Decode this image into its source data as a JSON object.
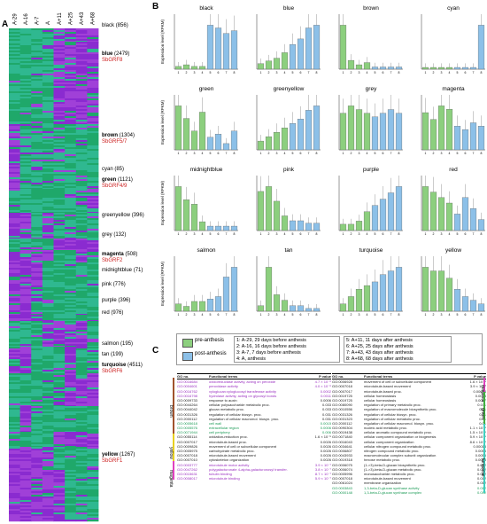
{
  "panels": {
    "a": "A",
    "b": "B",
    "c": "C"
  },
  "heatmap": {
    "columns": [
      "A-29",
      "A-16",
      "A-7",
      "A",
      "A+11",
      "A+25",
      "A+43",
      "A+68"
    ],
    "modules": [
      {
        "name": "black",
        "count": "(856)",
        "gene": ""
      },
      {
        "name": "blue",
        "count": "(2479)",
        "gene": "SbGRF8",
        "bold": true
      },
      {
        "name": "brown",
        "count": "(1304)",
        "gene": "SbGRF5/7",
        "bold": true
      },
      {
        "name": "cyan",
        "count": "(85)",
        "gene": ""
      },
      {
        "name": "green",
        "count": "(1121)",
        "gene": "SbGRF4/9",
        "bold": true
      },
      {
        "name": "greenyellow",
        "count": "(396)",
        "gene": ""
      },
      {
        "name": "grey",
        "count": "(132)",
        "gene": ""
      },
      {
        "name": "magenta",
        "count": "(508)",
        "gene": "SbGRF2",
        "bold": true
      },
      {
        "name": "midnightblue",
        "count": "(71)",
        "gene": ""
      },
      {
        "name": "pink",
        "count": "(776)",
        "gene": ""
      },
      {
        "name": "purple",
        "count": "(396)",
        "gene": ""
      },
      {
        "name": "red",
        "count": "(976)",
        "gene": ""
      },
      {
        "name": "salmon",
        "count": "(195)",
        "gene": ""
      },
      {
        "name": "tan",
        "count": "(199)",
        "gene": ""
      },
      {
        "name": "turquoise",
        "count": "(4511)",
        "gene": "SbGRF6",
        "bold": true
      },
      {
        "name": "yellow",
        "count": "(1267)",
        "gene": "SbGRF1",
        "bold": true
      }
    ],
    "colors": {
      "high": "#8a2bd0",
      "low": "#1fa86a",
      "mid": "#3cc3a0"
    }
  },
  "chart_data": [
    {
      "type": "bar",
      "title": "black",
      "ylabel": "Expression level (RPKM)",
      "x": [
        "1",
        "2",
        "3",
        "4",
        "5",
        "6",
        "7",
        "8"
      ],
      "values": [
        0.05,
        0.08,
        0.05,
        0.05,
        0.8,
        0.75,
        0.65,
        0.7
      ]
    },
    {
      "type": "bar",
      "title": "blue",
      "ylabel": "",
      "x": [
        "1",
        "2",
        "3",
        "4",
        "5",
        "6",
        "7",
        "8"
      ],
      "values": [
        0.1,
        0.15,
        0.2,
        0.3,
        0.45,
        0.55,
        0.75,
        0.8
      ]
    },
    {
      "type": "bar",
      "title": "brown",
      "ylabel": "",
      "x": [
        "1",
        "2",
        "3",
        "4",
        "5",
        "6",
        "7",
        "8"
      ],
      "values": [
        1.0,
        0.2,
        0.1,
        0.15,
        0.05,
        0.05,
        0.05,
        0.05
      ]
    },
    {
      "type": "bar",
      "title": "cyan",
      "ylabel": "",
      "x": [
        "1",
        "2",
        "3",
        "4",
        "5",
        "6",
        "7",
        "8"
      ],
      "values": [
        0.05,
        0.05,
        0.05,
        0.05,
        0.05,
        0.05,
        0.05,
        1.25
      ]
    },
    {
      "type": "bar",
      "title": "green",
      "ylabel": "Expression level (RPKM)",
      "x": [
        "1",
        "2",
        "3",
        "4",
        "5",
        "6",
        "7",
        "8"
      ],
      "values": [
        0.7,
        0.5,
        0.3,
        0.6,
        0.2,
        0.25,
        0.1,
        0.3
      ]
    },
    {
      "type": "bar",
      "title": "greenyellow",
      "ylabel": "",
      "x": [
        "1",
        "2",
        "3",
        "4",
        "5",
        "6",
        "7",
        "8"
      ],
      "values": [
        0.1,
        0.15,
        0.2,
        0.25,
        0.3,
        0.35,
        0.45,
        0.5
      ]
    },
    {
      "type": "bar",
      "title": "grey",
      "ylabel": "",
      "x": [
        "1",
        "2",
        "3",
        "4",
        "5",
        "6",
        "7",
        "8"
      ],
      "values": [
        0.5,
        0.6,
        0.55,
        0.5,
        0.45,
        0.5,
        0.55,
        0.5
      ]
    },
    {
      "type": "bar",
      "title": "magenta",
      "ylabel": "",
      "x": [
        "1",
        "2",
        "3",
        "4",
        "5",
        "6",
        "7",
        "8"
      ],
      "values": [
        0.55,
        0.45,
        0.65,
        0.6,
        0.35,
        0.3,
        0.4,
        0.35
      ]
    },
    {
      "type": "bar",
      "title": "midnightblue",
      "ylabel": "Expression level (RPKM)",
      "x": [
        "1",
        "2",
        "3",
        "4",
        "5",
        "6",
        "7",
        "8"
      ],
      "values": [
        1.0,
        0.7,
        0.6,
        0.2,
        0.1,
        0.1,
        0.1,
        0.1
      ]
    },
    {
      "type": "bar",
      "title": "pink",
      "ylabel": "",
      "x": [
        "1",
        "2",
        "3",
        "4",
        "5",
        "6",
        "7",
        "8"
      ],
      "values": [
        0.8,
        0.9,
        0.6,
        0.3,
        0.2,
        0.2,
        0.15,
        0.15
      ]
    },
    {
      "type": "bar",
      "title": "purple",
      "ylabel": "",
      "x": [
        "1",
        "2",
        "3",
        "4",
        "5",
        "6",
        "7",
        "8"
      ],
      "values": [
        0.1,
        0.1,
        0.15,
        0.3,
        0.4,
        0.5,
        0.6,
        0.7
      ]
    },
    {
      "type": "bar",
      "title": "red",
      "ylabel": "",
      "x": [
        "1",
        "2",
        "3",
        "4",
        "5",
        "6",
        "7",
        "8"
      ],
      "values": [
        0.4,
        0.35,
        0.3,
        0.25,
        0.15,
        0.3,
        0.2,
        0.1
      ]
    },
    {
      "type": "bar",
      "title": "salmon",
      "ylabel": "Expression level (RPKM)",
      "x": [
        "1",
        "2",
        "3",
        "4",
        "5",
        "6",
        "7",
        "8"
      ],
      "values": [
        0.15,
        0.1,
        0.2,
        0.2,
        0.25,
        0.3,
        0.7,
        0.9
      ]
    },
    {
      "type": "bar",
      "title": "tan",
      "ylabel": "",
      "x": [
        "1",
        "2",
        "3",
        "4",
        "5",
        "6",
        "7",
        "8"
      ],
      "values": [
        0.1,
        0.8,
        0.3,
        0.2,
        0.1,
        0.1,
        0.05,
        0.05
      ]
    },
    {
      "type": "bar",
      "title": "turquoise",
      "ylabel": "",
      "x": [
        "1",
        "2",
        "3",
        "4",
        "5",
        "6",
        "7",
        "8"
      ],
      "values": [
        0.1,
        0.2,
        0.3,
        0.35,
        0.4,
        0.5,
        0.55,
        0.6
      ]
    },
    {
      "type": "bar",
      "title": "yellow",
      "ylabel": "",
      "x": [
        "1",
        "2",
        "3",
        "4",
        "5",
        "6",
        "7",
        "8"
      ],
      "values": [
        0.6,
        0.55,
        0.55,
        0.45,
        0.3,
        0.2,
        0.15,
        0.1
      ]
    }
  ],
  "bar_colors": {
    "pre": "#8ccf7e",
    "post": "#8cc0e8",
    "edge": "#555555"
  },
  "legend": {
    "pre_label": "pre-anthesis",
    "post_label": "post-anthesis",
    "items": [
      "1: A-29, 29 days before anthesis",
      "2: A-16, 16 days before anthesis",
      "3: A-7, 7 days before anthesis",
      "4: A, anthesis",
      "5: A+11, 11 days after anthesis",
      "6: A+25, 25 days after anthesis",
      "7: A+43, 43 days after anthesis",
      "8: A+68, 68 days after anthesis"
    ]
  },
  "tables": {
    "head": {
      "go": "GO no.",
      "term": "Functional terms",
      "p": "P value"
    },
    "left": [
      {
        "go": "GO:0016684",
        "term": "oxidoreductase activity, acting on peroxide",
        "p": "4.7 × 10⁻⁸",
        "c": "#9b30c0"
      },
      {
        "go": "GO:0004601",
        "term": "peroxidase activity",
        "p": "4.0 × 10⁻⁸",
        "c": "#9b30c0"
      },
      {
        "go": "GO:0016762",
        "term": "xyloglucan:xyloglucosyl transferase activity",
        "p": "0.0002",
        "c": "#9b30c0"
      },
      {
        "go": "GO:0016798",
        "term": "hydrolase activity, acting on glycosyl bonds",
        "p": "0.0011",
        "c": "#9b30c0"
      },
      {
        "go": "GO:0009733",
        "term": "response to auxin",
        "p": "0.0006",
        "c": "#222"
      },
      {
        "go": "GO:0044264",
        "term": "cellular polysaccharide metabolic proc.",
        "p": "0.033",
        "c": "#222"
      },
      {
        "go": "GO:0044042",
        "term": "glucan metabolic proc.",
        "p": "0.033",
        "c": "#222"
      },
      {
        "go": "GO:0031326",
        "term": "regulation of cellular biosyn. proc.",
        "p": "0.031",
        "c": "#222"
      },
      {
        "go": "GO:2000112",
        "term": "regulation of cellular macromol. biosyn. proc.",
        "p": "0.031",
        "c": "#222"
      },
      {
        "go": "GO:0005618",
        "term": "cell wall",
        "p": "0.0015",
        "c": "#1a9a55"
      },
      {
        "go": "GO:0005576",
        "term": "extracellular region",
        "p": "0.0006",
        "c": "#1a9a55"
      },
      {
        "go": "GO:0071944",
        "term": "cell periphery",
        "p": "0.006",
        "c": "#1a9a55"
      },
      {
        "go": "GO:0055114",
        "term": "oxidation-reduction proc.",
        "p": "1.6 × 10⁻⁵",
        "c": "#222"
      },
      {
        "go": "GO:0007017",
        "term": "microtubule-based proc.",
        "p": "0.0026",
        "c": "#222"
      },
      {
        "go": "GO:0009826",
        "term": "movement of cell or subcellular component",
        "p": "0.0026",
        "c": "#222"
      },
      {
        "go": "GO:0005975",
        "term": "carbohydrate metabolic proc.",
        "p": "0.0026",
        "c": "#222"
      },
      {
        "go": "GO:0007018",
        "term": "microtubule-based movement",
        "p": "0.0026",
        "c": "#222"
      },
      {
        "go": "GO:0007010",
        "term": "cytoskeleton organization",
        "p": "0.0026",
        "c": "#222"
      },
      {
        "go": "GO:0003777",
        "term": "microtubule motor activity",
        "p": "3.9 × 10⁻⁷",
        "c": "#9b30c0"
      },
      {
        "go": "GO:0047262",
        "term": "polygalacturonate 4-alpha-galacturonosyl transfer.",
        "p": "3.8 × 10⁻⁷",
        "c": "#9b30c0"
      },
      {
        "go": "GO:0015631",
        "term": "tubulin binding",
        "p": "8.7 × 10⁻⁷",
        "c": "#9b30c0"
      },
      {
        "go": "GO:0008017",
        "term": "microtubule binding",
        "p": "5.9 × 10⁻⁷",
        "c": "#9b30c0"
      }
    ],
    "right": [
      {
        "go": "GO:0006928",
        "term": "movement of cell or subcellular component",
        "p": "1.6 × 10⁻⁸",
        "c": "#222"
      },
      {
        "go": "GO:0007018",
        "term": "microtubule-based movement",
        "p": "3.9 × 10⁻⁷",
        "c": "#222"
      },
      {
        "go": "GO:0007017",
        "term": "microtubule-based proc.",
        "p": "0.00014",
        "c": "#222"
      },
      {
        "go": "GO:0019725",
        "term": "cellular homeostasis",
        "p": "0.0015",
        "c": "#222"
      },
      {
        "go": "GO:0019725",
        "term": "cellular homeostasis",
        "p": "0.0017",
        "c": "#222"
      },
      {
        "go": "GO:0080090",
        "term": "regulation of primary metabolic proc.",
        "p": "0.011",
        "c": "#222"
      },
      {
        "go": "GO:0010556",
        "term": "regulation of macromolecule biosynthetic proc.",
        "p": "0.01",
        "c": "#222"
      },
      {
        "go": "GO:0031326",
        "term": "regulation of cellular biosyn. proc.",
        "p": "0.01",
        "c": "#222"
      },
      {
        "go": "GO:0031323",
        "term": "regulation of cellular metabolic proc.",
        "p": "0.01",
        "c": "#222"
      },
      {
        "go": "GO:2000112",
        "term": "regulation of cellular macromol. biosyn. proc.",
        "p": "0.01",
        "c": "#222"
      },
      {
        "go": "GO:0090304",
        "term": "nucleic acid metabolic proc.",
        "p": "1.1 × 10⁻⁵",
        "c": "#222"
      },
      {
        "go": "GO:0019438",
        "term": "cellular aromatic compound metabolic proc.",
        "p": "1.5 × 10⁻⁵",
        "c": "#222"
      },
      {
        "go": "GO:0071840",
        "term": "cellular component organization or biogenesis",
        "p": "5.9 × 10⁻⁵",
        "c": "#222"
      },
      {
        "go": "GO:0016043",
        "term": "cellular component organization",
        "p": "8.6 × 10⁻⁵",
        "c": "#222"
      },
      {
        "go": "GO:0034641",
        "term": "cellular nitrogen compound metabolic proc.",
        "p": "0.00018",
        "c": "#222"
      },
      {
        "go": "GO:0006807",
        "term": "nitrogen compound metabolic proc.",
        "p": "0.0055",
        "c": "#222"
      },
      {
        "go": "GO:0043933",
        "term": "macromolecular complex subunit organization",
        "p": "0.0055",
        "c": "#222"
      },
      {
        "go": "GO:0019318",
        "term": "hexose metabolic proc.",
        "p": "0.0068",
        "c": "#222"
      },
      {
        "go": "GO:0006075",
        "term": "(1->3)-beta-D-glucan biosynthetic proc.",
        "p": "0.012",
        "c": "#222"
      },
      {
        "go": "GO:0006074",
        "term": "(1->3)-beta-D-glucan metabolic proc.",
        "p": "0.012",
        "c": "#222"
      },
      {
        "go": "GO:0005996",
        "term": "monosaccharide metabolic proc.",
        "p": "0.012",
        "c": "#222"
      },
      {
        "go": "GO:0007018",
        "term": "microtubule-based movement",
        "p": "0.012",
        "c": "#222"
      },
      {
        "go": "GO:0061024",
        "term": "membrane organization",
        "p": "0.012",
        "c": "#222"
      },
      {
        "go": "GO:0003843",
        "term": "1,3-beta-D-glucan synthase activity",
        "p": "0.012",
        "c": "#1a9a55"
      },
      {
        "go": "GO:0000148",
        "term": "1,3-beta-D-glucan synthase complex",
        "p": "0.012",
        "c": "#1a9a55"
      }
    ],
    "left_groups": [
      {
        "name": "brown",
        "color": "#a0522d",
        "rows": [
          0,
          11
        ]
      },
      {
        "name": "yellow",
        "color": "#e8d020",
        "rows": [
          12,
          17
        ]
      },
      {
        "name": "magenta",
        "color": "#e040c0",
        "rows": [
          18,
          21
        ]
      }
    ],
    "right_groups": [
      {
        "name": "magenta",
        "color": "#e040c0",
        "rows": [
          0,
          2
        ]
      },
      {
        "name": "green",
        "color": "#40b040",
        "rows": [
          3,
          9
        ]
      },
      {
        "name": "turquoise",
        "color": "#40d0c0",
        "rows": [
          10,
          24
        ]
      }
    ]
  }
}
